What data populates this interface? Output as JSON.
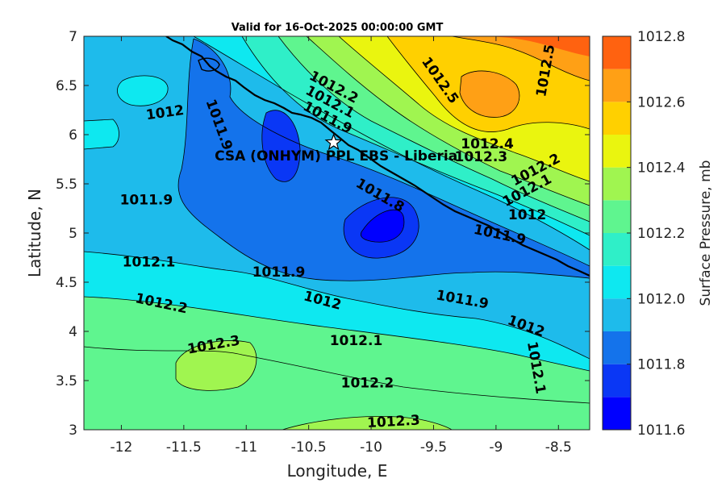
{
  "chart_data": {
    "type": "contour",
    "title": "Valid for 16-Oct-2025 00:00:00 GMT",
    "xlabel": "Longitude, E",
    "ylabel": "Latitude, N",
    "xlim": [
      -12.3,
      -8.25
    ],
    "ylim": [
      3,
      7
    ],
    "xticks": [
      -12,
      -11.5,
      -11,
      -10.5,
      -10,
      -9.5,
      -9,
      -8.5
    ],
    "yticks": [
      3,
      3.5,
      4,
      4.5,
      5,
      5.5,
      6,
      6.5,
      7
    ],
    "colorbar": {
      "label": "Surface Pressure, mb",
      "range": [
        1011.6,
        1012.8
      ],
      "ticks": [
        1011.6,
        1011.8,
        1012,
        1012.2,
        1012.4,
        1012.6,
        1012.8
      ],
      "levels": [
        1011.6,
        1011.7,
        1011.8,
        1011.9,
        1012.0,
        1012.1,
        1012.2,
        1012.3,
        1012.4,
        1012.5,
        1012.6,
        1012.7,
        1012.8
      ],
      "colors": [
        "#0000ff",
        "#0a37f5",
        "#1473eb",
        "#1ebbeb",
        "#0ee8f0",
        "#2fefc8",
        "#5ff58f",
        "#a0f550",
        "#eaf50f",
        "#ffd000",
        "#ffa015",
        "#ff6210",
        "#ff1a00"
      ]
    },
    "station": {
      "label": "CSA (ONHYM) PPL EBS  - Liberia",
      "lon": -10.3,
      "lat": 5.92,
      "marker": "star"
    },
    "contour_labels": [
      {
        "text": "1012.5",
        "lon": -9.45,
        "lat": 6.55,
        "angle": 55
      },
      {
        "text": "1012.5",
        "lon": -8.6,
        "lat": 6.65,
        "angle": -80
      },
      {
        "text": "1012.2",
        "lon": -10.3,
        "lat": 6.48,
        "angle": 28
      },
      {
        "text": "1012.1",
        "lon": -10.33,
        "lat": 6.33,
        "angle": 28
      },
      {
        "text": "1011.9",
        "lon": -10.35,
        "lat": 6.17,
        "angle": 28
      },
      {
        "text": "1012",
        "lon": -11.65,
        "lat": 6.22,
        "angle": -8
      },
      {
        "text": "1011.9",
        "lon": -11.22,
        "lat": 6.1,
        "angle": 70
      },
      {
        "text": "1012.4",
        "lon": -9.07,
        "lat": 5.9,
        "angle": 0
      },
      {
        "text": "1012.3",
        "lon": -9.12,
        "lat": 5.77,
        "angle": 0
      },
      {
        "text": "1012.2",
        "lon": -8.68,
        "lat": 5.64,
        "angle": -28
      },
      {
        "text": "1012.1",
        "lon": -8.75,
        "lat": 5.43,
        "angle": -28
      },
      {
        "text": "1012",
        "lon": -8.75,
        "lat": 5.18,
        "angle": 0
      },
      {
        "text": "1011.9",
        "lon": -8.97,
        "lat": 4.98,
        "angle": 12
      },
      {
        "text": "1011.9",
        "lon": -11.8,
        "lat": 5.33,
        "angle": 0
      },
      {
        "text": "1011.8",
        "lon": -9.93,
        "lat": 5.38,
        "angle": 30
      },
      {
        "text": "1012.1",
        "lon": -11.78,
        "lat": 4.7,
        "angle": 0
      },
      {
        "text": "1011.9",
        "lon": -10.74,
        "lat": 4.6,
        "angle": 0
      },
      {
        "text": "1012",
        "lon": -10.39,
        "lat": 4.31,
        "angle": 15
      },
      {
        "text": "1012.2",
        "lon": -11.68,
        "lat": 4.28,
        "angle": 12
      },
      {
        "text": "1011.9",
        "lon": -9.27,
        "lat": 4.32,
        "angle": 10
      },
      {
        "text": "1012",
        "lon": -8.76,
        "lat": 4.05,
        "angle": 20
      },
      {
        "text": "1012.3",
        "lon": -11.26,
        "lat": 3.86,
        "angle": -10
      },
      {
        "text": "1012.1",
        "lon": -10.12,
        "lat": 3.9,
        "angle": 0
      },
      {
        "text": "1012.1",
        "lon": -8.68,
        "lat": 3.63,
        "angle": 80
      },
      {
        "text": "1012.2",
        "lon": -10.03,
        "lat": 3.47,
        "angle": 0
      },
      {
        "text": "1012.3",
        "lon": -9.82,
        "lat": 3.08,
        "angle": -3
      }
    ]
  }
}
